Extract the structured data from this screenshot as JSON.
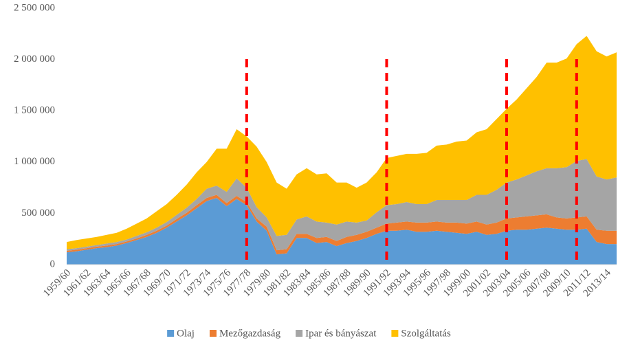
{
  "chart_data": {
    "type": "area",
    "stacked": true,
    "categories": [
      "1959/60",
      null,
      "1961/62",
      null,
      "1963/64",
      null,
      "1965/66",
      null,
      "1967/68",
      null,
      "1969/70",
      null,
      "1971/72",
      null,
      "1973/74",
      null,
      "1975/76",
      null,
      "1977/78",
      null,
      "1979/80",
      null,
      "1981/82",
      null,
      "1983/84",
      null,
      "1985/86",
      null,
      "1987/88",
      null,
      "1989/90",
      null,
      "1991/92",
      null,
      "1993/94",
      null,
      "1995/96",
      null,
      "1997/98",
      null,
      "1999/00",
      null,
      "2001/02",
      null,
      "2003/04",
      null,
      "2005/06",
      null,
      "2007/08",
      null,
      "2009/10",
      null,
      "2011/12",
      null,
      "2013/14",
      null
    ],
    "series": [
      {
        "name": "Olaj",
        "color": "#5b9bd5",
        "values": [
          120000,
          130000,
          145000,
          160000,
          170000,
          185000,
          210000,
          240000,
          270000,
          310000,
          360000,
          420000,
          480000,
          550000,
          620000,
          650000,
          570000,
          640000,
          580000,
          420000,
          330000,
          100000,
          110000,
          260000,
          260000,
          210000,
          220000,
          180000,
          210000,
          230000,
          260000,
          300000,
          330000,
          330000,
          340000,
          320000,
          320000,
          330000,
          320000,
          310000,
          300000,
          320000,
          290000,
          300000,
          330000,
          340000,
          340000,
          350000,
          360000,
          350000,
          340000,
          340000,
          350000,
          220000,
          200000,
          200000
        ]
      },
      {
        "name": "Mezőgazdaság",
        "color": "#ed7d31",
        "values": [
          15000,
          15000,
          15000,
          15000,
          15000,
          15000,
          15000,
          15000,
          20000,
          20000,
          20000,
          25000,
          25000,
          30000,
          30000,
          30000,
          30000,
          30000,
          30000,
          30000,
          40000,
          40000,
          40000,
          40000,
          40000,
          50000,
          50000,
          50000,
          60000,
          60000,
          60000,
          60000,
          70000,
          80000,
          80000,
          90000,
          90000,
          90000,
          90000,
          100000,
          100000,
          100000,
          100000,
          110000,
          120000,
          120000,
          130000,
          130000,
          130000,
          110000,
          110000,
          120000,
          120000,
          120000,
          130000,
          130000
        ]
      },
      {
        "name": "Ipar és bányászat",
        "color": "#a5a5a5",
        "values": [
          15000,
          15000,
          15000,
          15000,
          20000,
          20000,
          20000,
          25000,
          25000,
          30000,
          35000,
          40000,
          50000,
          60000,
          90000,
          90000,
          110000,
          170000,
          140000,
          110000,
          90000,
          140000,
          140000,
          140000,
          170000,
          160000,
          140000,
          160000,
          150000,
          120000,
          110000,
          150000,
          180000,
          180000,
          190000,
          180000,
          180000,
          210000,
          220000,
          220000,
          230000,
          260000,
          290000,
          320000,
          350000,
          370000,
          400000,
          430000,
          450000,
          480000,
          500000,
          550000,
          560000,
          520000,
          500000,
          520000
        ]
      },
      {
        "name": "Szolgáltatás",
        "color": "#ffc000",
        "values": [
          70000,
          80000,
          80000,
          80000,
          85000,
          90000,
          105000,
          120000,
          135000,
          160000,
          175000,
          195000,
          225000,
          260000,
          260000,
          360000,
          420000,
          480000,
          500000,
          590000,
          540000,
          520000,
          450000,
          440000,
          470000,
          460000,
          480000,
          410000,
          380000,
          340000,
          370000,
          390000,
          460000,
          470000,
          470000,
          490000,
          500000,
          530000,
          540000,
          570000,
          580000,
          610000,
          640000,
          690000,
          720000,
          780000,
          850000,
          920000,
          1030000,
          1030000,
          1060000,
          1140000,
          1200000,
          1220000,
          1200000,
          1220000
        ]
      }
    ],
    "ylim": [
      0,
      2500000
    ],
    "yticks": [
      0,
      {
        "value": 500000,
        "label": "500 000"
      },
      {
        "value": 1000000,
        "label": "1 000 000"
      },
      {
        "value": 1500000,
        "label": "1 500 000"
      },
      {
        "value": 2000000,
        "label": "2 000 000"
      },
      {
        "value": 2500000,
        "label": "2 500 000"
      }
    ],
    "vlines": [
      18,
      32,
      44,
      51
    ],
    "vline_color": "#ff0000",
    "legend": "bottom"
  }
}
